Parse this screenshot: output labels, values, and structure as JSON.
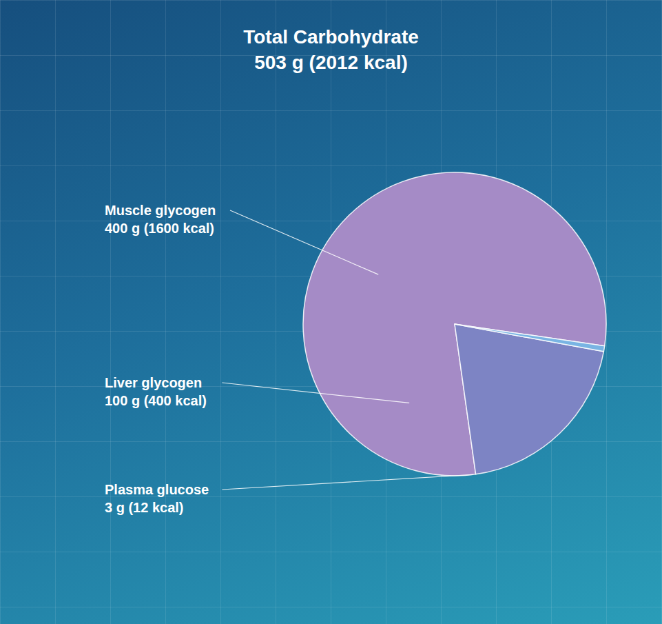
{
  "chart_data": {
    "type": "pie",
    "title": "Total Carbohydrate",
    "subtitle": "503 g (2012 kcal)",
    "categories": [
      "Muscle glycogen",
      "Liver glycogen",
      "Plasma glucose"
    ],
    "values": [
      400,
      100,
      3
    ],
    "value_labels": [
      "400 g (1600 kcal)",
      "100 g (400 kcal)",
      "3 g (12 kcal)"
    ],
    "colors": [
      "#a58bc6",
      "#7d84c4",
      "#79b4e3"
    ],
    "data_labels": true
  }
}
